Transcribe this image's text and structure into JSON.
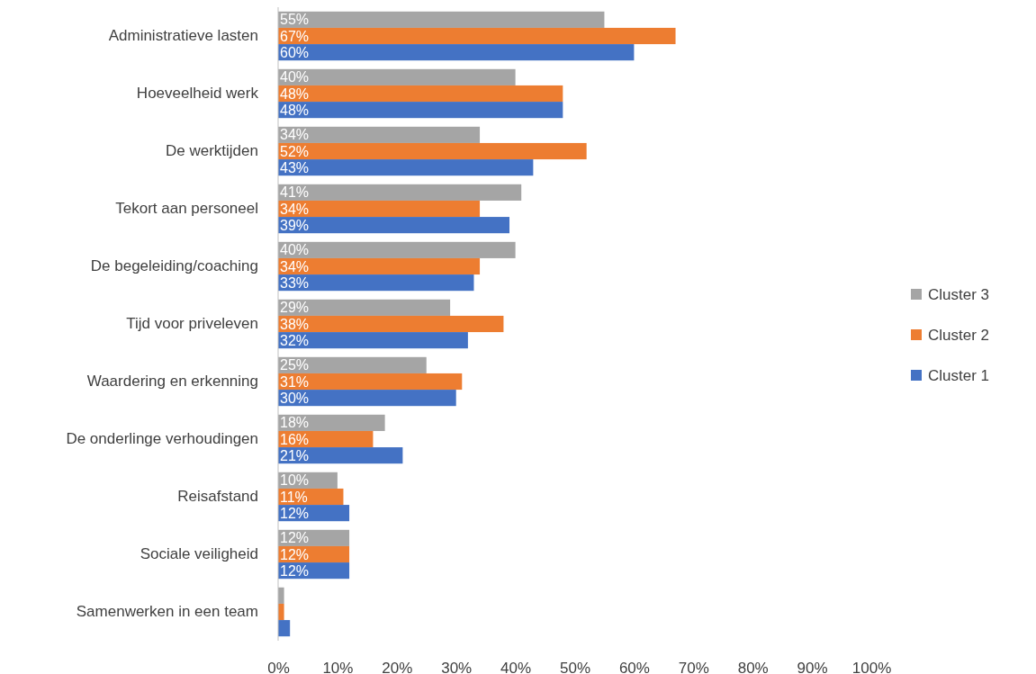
{
  "chart_data": {
    "type": "bar",
    "orientation": "horizontal",
    "categories": [
      "Administratieve lasten",
      "Hoeveelheid werk",
      "De werktijden",
      "Tekort aan personeel",
      "De begeleiding/coaching",
      "Tijd voor priveleven",
      "Waardering en erkenning",
      "De onderlinge verhoudingen",
      "Reisafstand",
      "Sociale veiligheid",
      "Samenwerken in een team"
    ],
    "series": [
      {
        "name": "Cluster 3",
        "color": "#a5a5a5",
        "values": [
          55,
          40,
          34,
          41,
          40,
          29,
          25,
          18,
          10,
          12,
          1
        ],
        "value_labels": [
          "55%",
          "40%",
          "34%",
          "41%",
          "40%",
          "29%",
          "25%",
          "18%",
          "10%",
          "12%",
          null
        ]
      },
      {
        "name": "Cluster 2",
        "color": "#ed7d31",
        "values": [
          67,
          48,
          52,
          34,
          34,
          38,
          31,
          16,
          11,
          12,
          1
        ],
        "value_labels": [
          "67%",
          "48%",
          "52%",
          "34%",
          "34%",
          "38%",
          "31%",
          "16%",
          "11%",
          "12%",
          null
        ]
      },
      {
        "name": "Cluster 1",
        "color": "#4472c4",
        "values": [
          60,
          48,
          43,
          39,
          33,
          32,
          30,
          21,
          12,
          12,
          2
        ],
        "value_labels": [
          "60%",
          "48%",
          "43%",
          "39%",
          "33%",
          "32%",
          "30%",
          "21%",
          "12%",
          "12%",
          null
        ]
      }
    ],
    "xlim": [
      0,
      100
    ],
    "xticks": [
      {
        "value": 0,
        "label": "0%"
      },
      {
        "value": 10,
        "label": "10%"
      },
      {
        "value": 20,
        "label": "20%"
      },
      {
        "value": 30,
        "label": "30%"
      },
      {
        "value": 40,
        "label": "40%"
      },
      {
        "value": 50,
        "label": "50%"
      },
      {
        "value": 60,
        "label": "60%"
      },
      {
        "value": 70,
        "label": "70%"
      },
      {
        "value": 80,
        "label": "80%"
      },
      {
        "value": 90,
        "label": "90%"
      },
      {
        "value": 100,
        "label": "100%"
      }
    ],
    "grid": false,
    "legend": "right"
  }
}
